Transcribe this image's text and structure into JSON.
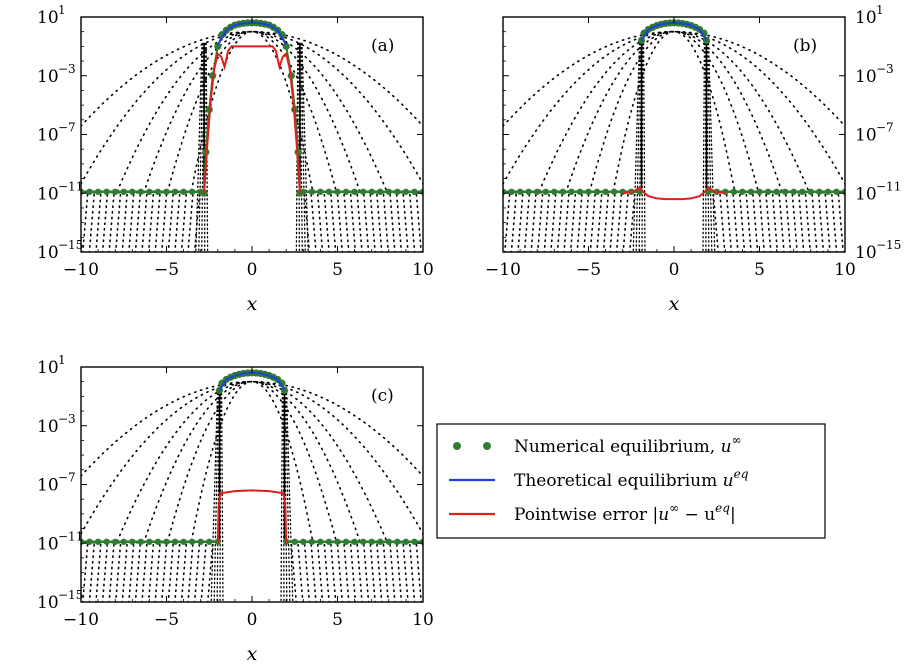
{
  "chart_data": [
    {
      "type": "line",
      "panel": "a",
      "label": "(a)",
      "xlabel": "x",
      "xlim": [
        -10,
        10
      ],
      "xticks": [
        -10,
        -5,
        0,
        5,
        10
      ],
      "xtick_labels": [
        "−10",
        "−5",
        "0",
        "5",
        "10"
      ],
      "ylim_log10": [
        -15,
        1
      ],
      "y_scale": "log",
      "yticks_log10": [
        1,
        -3,
        -7,
        -11,
        -15
      ],
      "ytick_labels": [
        {
          "base": "10",
          "exp": "1"
        },
        {
          "base": "10",
          "exp": "−3"
        },
        {
          "base": "10",
          "exp": "−7"
        },
        {
          "base": "10",
          "exp": "−11"
        },
        {
          "base": "10",
          "exp": "−15"
        }
      ],
      "ytick_side": "left",
      "floor_log10": -10.9,
      "support_half_width": 2.8,
      "peak_log10": 0.6,
      "series": [
        {
          "role": "numerical",
          "color": "#2e7d32",
          "style": "dots",
          "x": [
            -2.8,
            -2.7,
            -2.5,
            -2.3,
            -2.0,
            -1.75,
            -1.5,
            -1.25,
            -1.0,
            -0.75,
            -0.5,
            -0.25,
            0,
            0.25,
            0.5,
            0.75,
            1.0,
            1.25,
            1.5,
            1.75,
            2.0,
            2.3,
            2.5,
            2.7,
            2.8
          ],
          "log10_y": [
            -11.0,
            -8.2,
            -5.3,
            -3.0,
            -1.0,
            -0.2,
            0.1,
            0.3,
            0.45,
            0.52,
            0.57,
            0.6,
            0.6,
            0.6,
            0.57,
            0.52,
            0.45,
            0.3,
            0.1,
            -0.2,
            -1.0,
            -3.0,
            -5.3,
            -8.2,
            -11.0
          ]
        },
        {
          "role": "theoretical",
          "color": "#1f3fd6",
          "style": "line",
          "x": [
            -2.0,
            -1.5,
            -1.0,
            -0.5,
            0,
            0.5,
            1.0,
            1.5,
            2.0
          ],
          "log10_y": [
            -0.9,
            0.1,
            0.45,
            0.57,
            0.6,
            0.57,
            0.45,
            0.1,
            -0.9
          ]
        },
        {
          "role": "pointwise-error",
          "color": "#e0201b",
          "style": "line",
          "x": [
            -2.8,
            -2.6,
            -2.4,
            -2.2,
            -2.0,
            -1.8,
            -1.6,
            -1.4,
            -1.2,
            -1.0,
            -0.5,
            0,
            0.5,
            1.0,
            1.2,
            1.4,
            1.6,
            1.8,
            2.0,
            2.2,
            2.4,
            2.6,
            2.8
          ],
          "log10_y": [
            -11.0,
            -7.5,
            -4.5,
            -2.5,
            -1.5,
            -1.7,
            -2.4,
            -1.3,
            -1.0,
            -1.0,
            -1.0,
            -1.0,
            -1.0,
            -1.0,
            -1.0,
            -1.3,
            -2.4,
            -1.7,
            -1.5,
            -2.5,
            -4.5,
            -7.5,
            -11.0
          ]
        }
      ]
    },
    {
      "type": "line",
      "panel": "b",
      "label": "(b)",
      "xlabel": "x",
      "xlim": [
        -10,
        10
      ],
      "xticks": [
        -10,
        -5,
        0,
        5,
        10
      ],
      "xtick_labels": [
        "−10",
        "−5",
        "0",
        "5",
        "10"
      ],
      "ylim_log10": [
        -15,
        1
      ],
      "y_scale": "log",
      "yticks_log10": [
        1,
        -3,
        -7,
        -11,
        -15
      ],
      "ytick_labels": [
        {
          "base": "10",
          "exp": "1"
        },
        {
          "base": "10",
          "exp": "−3"
        },
        {
          "base": "10",
          "exp": "−7"
        },
        {
          "base": "10",
          "exp": "−11"
        },
        {
          "base": "10",
          "exp": "−15"
        }
      ],
      "ytick_side": "right",
      "floor_log10": -10.9,
      "support_half_width": 1.9,
      "peak_log10": 0.6,
      "series": [
        {
          "role": "numerical",
          "color": "#2e7d32",
          "style": "dots",
          "x": [
            -1.9,
            -1.75,
            -1.5,
            -1.25,
            -1.0,
            -0.75,
            -0.5,
            -0.25,
            0,
            0.25,
            0.5,
            0.75,
            1.0,
            1.25,
            1.5,
            1.75,
            1.9
          ],
          "log10_y": [
            -0.6,
            -0.1,
            0.15,
            0.3,
            0.42,
            0.5,
            0.56,
            0.59,
            0.6,
            0.59,
            0.56,
            0.5,
            0.42,
            0.3,
            0.15,
            -0.1,
            -0.6
          ]
        },
        {
          "role": "theoretical",
          "color": "#1f3fd6",
          "style": "line",
          "x": [
            -1.9,
            -1.5,
            -1.0,
            -0.5,
            0,
            0.5,
            1.0,
            1.5,
            1.9
          ],
          "log10_y": [
            -0.6,
            0.15,
            0.42,
            0.56,
            0.6,
            0.56,
            0.42,
            0.15,
            -0.6
          ]
        },
        {
          "role": "pointwise-error",
          "color": "#e0201b",
          "style": "line",
          "x": [
            -3.0,
            -2.4,
            -2.0,
            -1.8,
            -1.5,
            -1.0,
            -0.5,
            0,
            0.5,
            1.0,
            1.5,
            1.8,
            2.0,
            2.4,
            3.0
          ],
          "log10_y": [
            -11.0,
            -10.9,
            -10.6,
            -10.9,
            -11.2,
            -11.35,
            -11.4,
            -11.4,
            -11.4,
            -11.35,
            -11.2,
            -10.9,
            -10.6,
            -10.9,
            -11.0
          ]
        }
      ]
    },
    {
      "type": "line",
      "panel": "c",
      "label": "(c)",
      "xlabel": "x",
      "xlim": [
        -10,
        10
      ],
      "xticks": [
        -10,
        -5,
        0,
        5,
        10
      ],
      "xtick_labels": [
        "−10",
        "−5",
        "0",
        "5",
        "10"
      ],
      "ylim_log10": [
        -15,
        1
      ],
      "y_scale": "log",
      "yticks_log10": [
        1,
        -3,
        -7,
        -11,
        -15
      ],
      "ytick_labels": [
        {
          "base": "10",
          "exp": "1"
        },
        {
          "base": "10",
          "exp": "−3"
        },
        {
          "base": "10",
          "exp": "−7"
        },
        {
          "base": "10",
          "exp": "−11"
        },
        {
          "base": "10",
          "exp": "−15"
        }
      ],
      "ytick_side": "left",
      "floor_log10": -10.9,
      "support_half_width": 1.9,
      "peak_log10": 0.6,
      "series": [
        {
          "role": "numerical",
          "color": "#2e7d32",
          "style": "dots",
          "x": [
            -1.9,
            -1.75,
            -1.5,
            -1.25,
            -1.0,
            -0.75,
            -0.5,
            -0.25,
            0,
            0.25,
            0.5,
            0.75,
            1.0,
            1.25,
            1.5,
            1.75,
            1.9
          ],
          "log10_y": [
            -0.6,
            -0.1,
            0.15,
            0.3,
            0.42,
            0.5,
            0.56,
            0.59,
            0.6,
            0.59,
            0.56,
            0.5,
            0.42,
            0.3,
            0.15,
            -0.1,
            -0.6
          ]
        },
        {
          "role": "theoretical",
          "color": "#1f3fd6",
          "style": "line",
          "x": [
            -1.9,
            -1.5,
            -1.0,
            -0.5,
            0,
            0.5,
            1.0,
            1.5,
            1.9
          ],
          "log10_y": [
            -0.6,
            0.15,
            0.42,
            0.56,
            0.6,
            0.56,
            0.42,
            0.15,
            -0.6
          ]
        },
        {
          "role": "pointwise-error",
          "color": "#e0201b",
          "style": "line",
          "x": [
            -2.0,
            -1.95,
            -1.85,
            -1.6,
            -1.0,
            -0.5,
            0,
            0.5,
            1.0,
            1.6,
            1.85,
            1.95,
            2.0
          ],
          "log10_y": [
            -11.0,
            -8.5,
            -7.6,
            -7.55,
            -7.45,
            -7.42,
            -7.4,
            -7.42,
            -7.45,
            -7.55,
            -7.6,
            -8.5,
            -11.0
          ]
        }
      ]
    }
  ],
  "legend": {
    "placement": "right of panel (c)",
    "entries": [
      {
        "label": "Numerical equilibrium, ",
        "math": "u",
        "sup": "∞",
        "suffix": "",
        "color": "#2e7d32",
        "style": "dots"
      },
      {
        "label": "Theoretical equilibrium ",
        "math": "u",
        "sup": "eq",
        "suffix": "",
        "color": "#1f3fd6",
        "style": "line"
      },
      {
        "label": "Pointwise error |",
        "math": "u",
        "sup": "∞",
        "suffix": " − u",
        "sup2": "eq",
        "suffix2": "|",
        "color": "#e0201b",
        "style": "line"
      }
    ]
  }
}
